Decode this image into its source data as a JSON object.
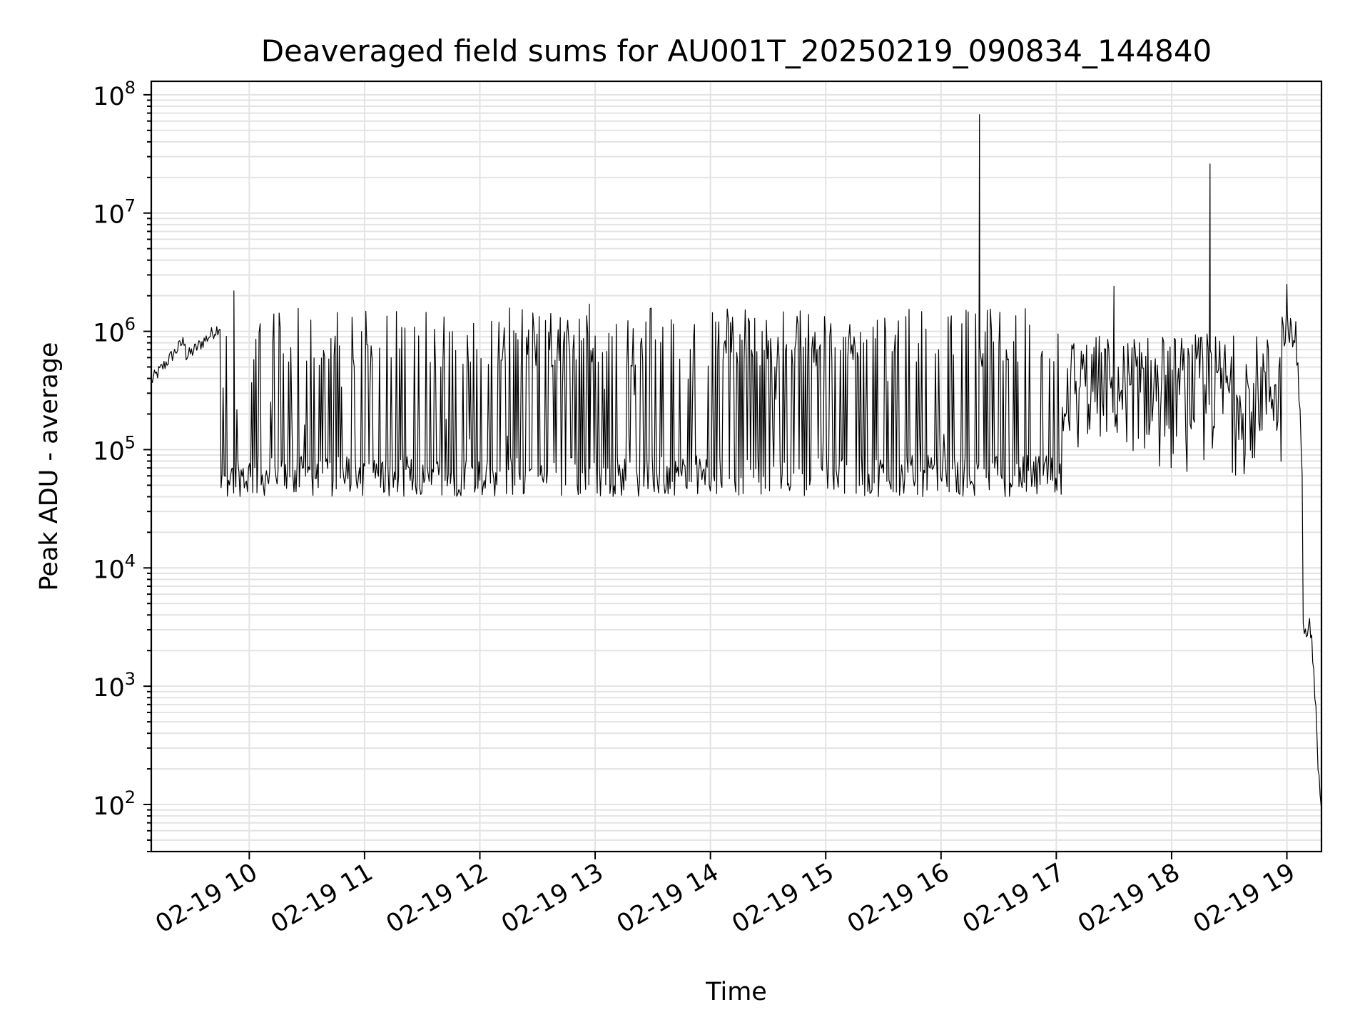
{
  "chart_data": {
    "type": "line",
    "title": "Deaveraged field sums for AU001T_20250219_090834_144840",
    "xlabel": "Time",
    "ylabel": "Peak ADU - average",
    "yscale": "log",
    "ylim": [
      40,
      130000000
    ],
    "xlim": [
      "02-19 09:09",
      "02-19 19:18"
    ],
    "grid": true,
    "legend": "none",
    "line_color": "#000000",
    "x_ticks": [
      "02-19 10",
      "02-19 11",
      "02-19 12",
      "02-19 13",
      "02-19 14",
      "02-19 15",
      "02-19 16",
      "02-19 17",
      "02-19 18",
      "02-19 19"
    ],
    "x_tick_hours": [
      10,
      11,
      12,
      13,
      14,
      15,
      16,
      17,
      18,
      19
    ],
    "y_ticks": [
      {
        "base": "10",
        "exp": "2",
        "value": 100
      },
      {
        "base": "10",
        "exp": "3",
        "value": 1000
      },
      {
        "base": "10",
        "exp": "4",
        "value": 10000
      },
      {
        "base": "10",
        "exp": "5",
        "value": 100000
      },
      {
        "base": "10",
        "exp": "6",
        "value": 1000000
      },
      {
        "base": "10",
        "exp": "7",
        "value": 10000000
      },
      {
        "base": "10",
        "exp": "8",
        "value": 100000000
      }
    ],
    "series": [
      {
        "description_points": [
          [
            "09:09",
            400000
          ],
          [
            "09:15",
            550000
          ],
          [
            "09:25",
            650000
          ],
          [
            "09:35",
            750000
          ],
          [
            "09:45",
            1000000
          ],
          [
            "09:50",
            1300000
          ],
          [
            "09:55",
            1500000
          ],
          [
            "10:00",
            60000
          ],
          [
            "10:30",
            55000
          ],
          [
            "11:00",
            50000
          ],
          [
            "11:30",
            45000
          ],
          [
            "12:00",
            50000
          ],
          [
            "12:30",
            1300000
          ],
          [
            "13:00",
            60000
          ],
          [
            "13:30",
            55000
          ],
          [
            "14:00",
            60000
          ],
          [
            "14:15",
            1400000
          ],
          [
            "14:45",
            1400000
          ],
          [
            "15:00",
            1300000
          ],
          [
            "15:30",
            300000
          ],
          [
            "16:00",
            60000
          ],
          [
            "16:20",
            60000000
          ],
          [
            "16:30",
            55000
          ],
          [
            "17:00",
            50000
          ],
          [
            "17:10",
            250000
          ],
          [
            "17:30",
            500000
          ],
          [
            "18:00",
            600000
          ],
          [
            "18:20",
            25000000
          ],
          [
            "18:40",
            300000
          ],
          [
            "18:55",
            900000
          ],
          [
            "19:00",
            1200000
          ],
          [
            "19:05",
            200000
          ],
          [
            "19:10",
            3000
          ],
          [
            "19:15",
            1500
          ],
          [
            "19:18",
            100
          ]
        ]
      }
    ]
  }
}
